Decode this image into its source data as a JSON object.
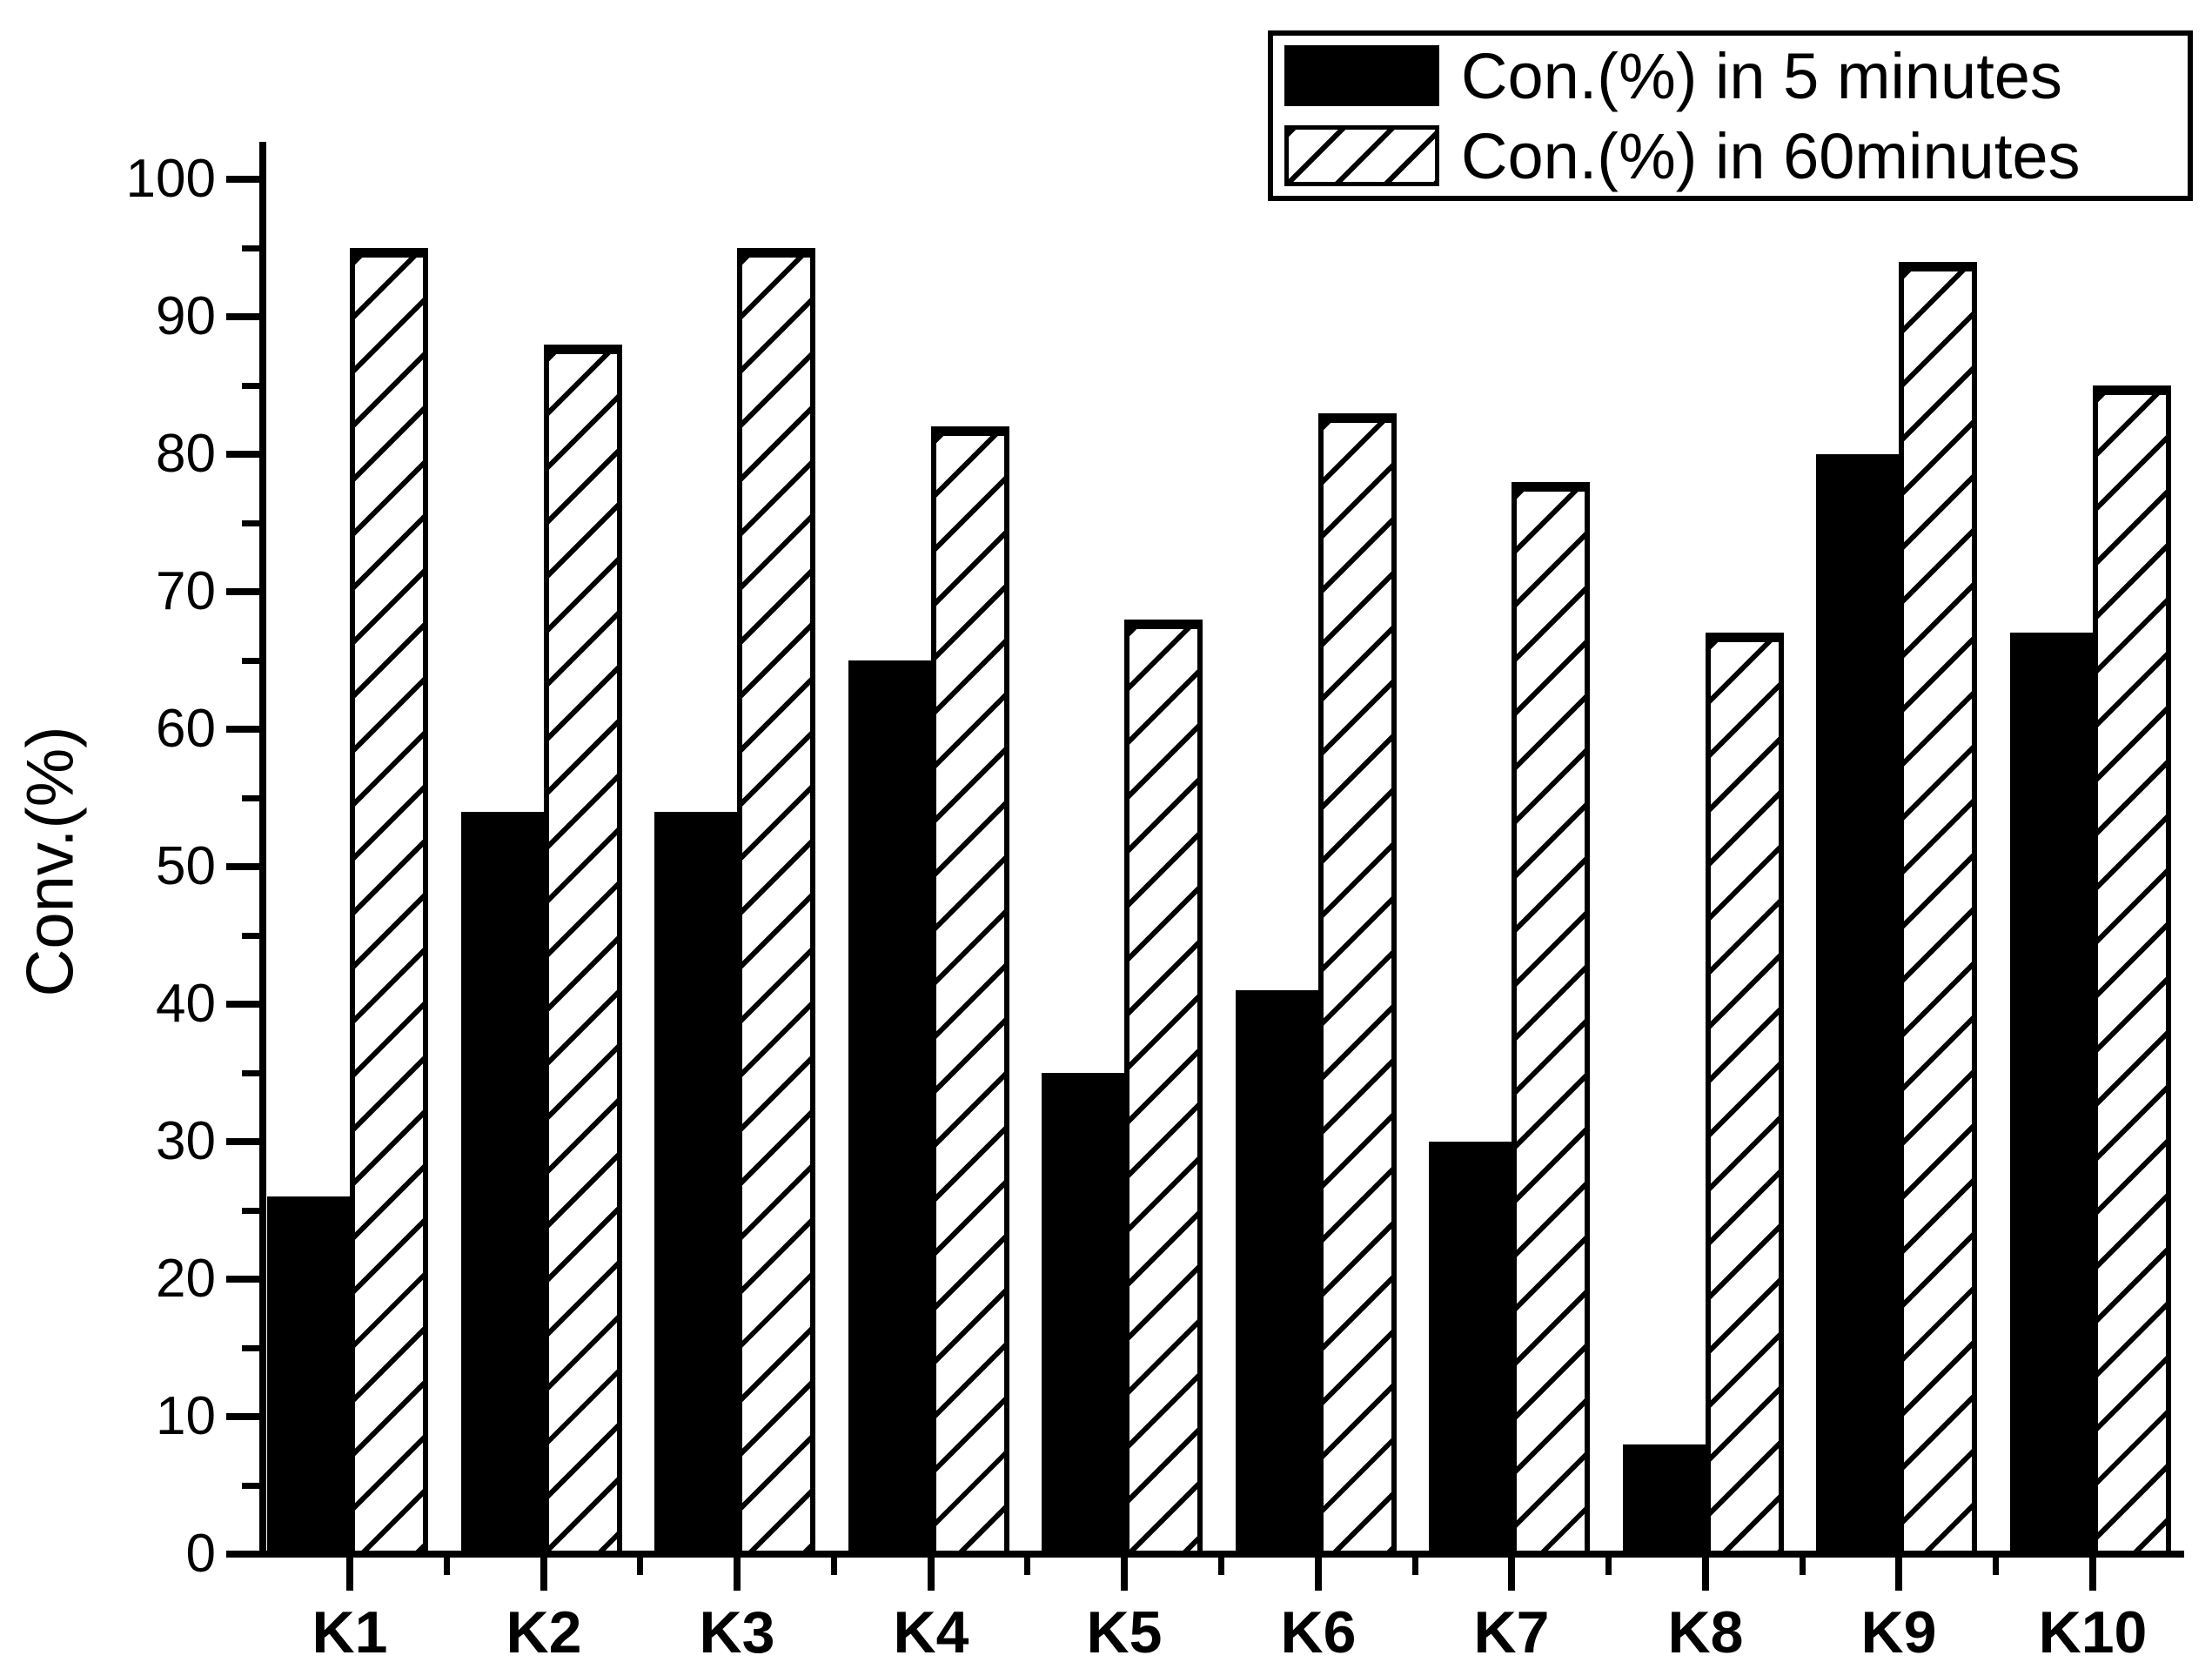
{
  "chart_data": {
    "type": "bar",
    "title": "",
    "xlabel": "",
    "ylabel": "Conv.(%)",
    "ylim": [
      0,
      100
    ],
    "y_major_ticks": [
      0,
      10,
      20,
      30,
      40,
      50,
      60,
      70,
      80,
      90,
      100
    ],
    "y_minor_step": 5,
    "grid": false,
    "legend_position": "top-right",
    "categories": [
      "K1",
      "K2",
      "K3",
      "K4",
      "K5",
      "K6",
      "K7",
      "K8",
      "K9",
      "K10"
    ],
    "series": [
      {
        "name": "Con.(%) in 5 minutes",
        "style": "solid",
        "values": [
          26,
          54,
          54,
          65,
          35,
          41,
          30,
          8,
          80,
          67
        ]
      },
      {
        "name": "Con.(%) in 60minutes",
        "style": "hatched",
        "values": [
          95,
          88,
          95,
          82,
          68,
          83,
          78,
          67,
          94,
          85
        ]
      }
    ]
  },
  "colors": {
    "foreground": "#000000",
    "background": "#ffffff"
  }
}
